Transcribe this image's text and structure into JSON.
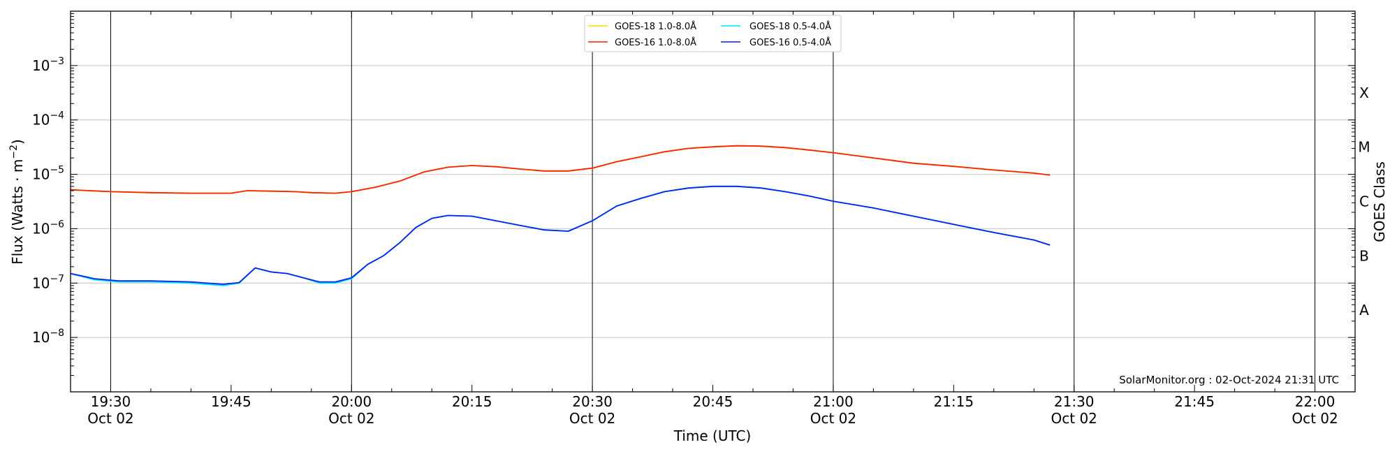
{
  "chart_data": {
    "type": "line",
    "xlabel": "Time (UTC)",
    "ylabel_main": "Flux (Watts · m",
    "ylabel_sup": "−2",
    "ylabel_close": ")",
    "right_label": "GOES Class",
    "y_scale": "log",
    "ylim": [
      1e-09,
      0.01
    ],
    "xlim": [
      "19:25",
      "22:05"
    ],
    "grid": "horizontal at decades",
    "legend_position": "top-center",
    "credit": "SolarMonitor.org : 02-Oct-2024 21:31 UTC",
    "y_ticks": [
      {
        "exp": "−3",
        "value": 0.001
      },
      {
        "exp": "−4",
        "value": 0.0001
      },
      {
        "exp": "−5",
        "value": 1e-05
      },
      {
        "exp": "−6",
        "value": 1e-06
      },
      {
        "exp": "−7",
        "value": 1e-07
      },
      {
        "exp": "−8",
        "value": 1e-08
      }
    ],
    "x_ticks": [
      {
        "time": "19:30",
        "label": "19:30",
        "sub": "Oct 02",
        "major": true
      },
      {
        "time": "19:45",
        "label": "19:45",
        "sub": "",
        "major": false
      },
      {
        "time": "20:00",
        "label": "20:00",
        "sub": "Oct 02",
        "major": true
      },
      {
        "time": "20:15",
        "label": "20:15",
        "sub": "",
        "major": false
      },
      {
        "time": "20:30",
        "label": "20:30",
        "sub": "Oct 02",
        "major": true
      },
      {
        "time": "20:45",
        "label": "20:45",
        "sub": "",
        "major": false
      },
      {
        "time": "21:00",
        "label": "21:00",
        "sub": "Oct 02",
        "major": true
      },
      {
        "time": "21:15",
        "label": "21:15",
        "sub": "",
        "major": false
      },
      {
        "time": "21:30",
        "label": "21:30",
        "sub": "Oct 02",
        "major": true
      },
      {
        "time": "21:45",
        "label": "21:45",
        "sub": "",
        "major": false
      },
      {
        "time": "22:00",
        "label": "22:00",
        "sub": "Oct 02",
        "major": true
      }
    ],
    "classes": [
      {
        "label": "X",
        "value": 0.000316
      },
      {
        "label": "M",
        "value": 3.16e-05
      },
      {
        "label": "C",
        "value": 3.16e-06
      },
      {
        "label": "B",
        "value": 3.16e-07
      },
      {
        "label": "A",
        "value": 3.16e-08
      }
    ],
    "legend": [
      {
        "name": "GOES-18 1.0-8.0Å",
        "color": "#ffd700"
      },
      {
        "name": "GOES-18 0.5-4.0Å",
        "color": "#00e5ff"
      },
      {
        "name": "GOES-16 1.0-8.0Å",
        "color": "#ff2000"
      },
      {
        "name": "GOES-16 0.5-4.0Å",
        "color": "#0022ee"
      }
    ],
    "series": [
      {
        "name": "GOES-18 1.0-8.0Å",
        "color": "#ffd700",
        "x": [
          "19:25",
          "19:30",
          "19:35",
          "19:40",
          "19:45",
          "19:47",
          "19:50",
          "19:53",
          "19:55",
          "19:58",
          "20:00",
          "20:03",
          "20:06",
          "20:09",
          "20:12",
          "20:15",
          "20:18",
          "20:21",
          "20:24",
          "20:27",
          "20:30",
          "20:33",
          "20:36",
          "20:39",
          "20:42",
          "20:45",
          "20:48",
          "20:51",
          "20:54",
          "20:57",
          "21:00",
          "21:05",
          "21:10",
          "21:15",
          "21:20",
          "21:25",
          "21:27"
        ],
        "y": [
          5.2e-06,
          4.8e-06,
          4.6e-06,
          4.5e-06,
          4.5e-06,
          5e-06,
          4.9e-06,
          4.8e-06,
          4.6e-06,
          4.5e-06,
          4.8e-06,
          5.8e-06,
          7.5e-06,
          1.1e-05,
          1.35e-05,
          1.45e-05,
          1.38e-05,
          1.25e-05,
          1.15e-05,
          1.15e-05,
          1.3e-05,
          1.7e-05,
          2.1e-05,
          2.6e-05,
          3e-05,
          3.2e-05,
          3.35e-05,
          3.3e-05,
          3.1e-05,
          2.8e-05,
          2.5e-05,
          2e-05,
          1.6e-05,
          1.4e-05,
          1.2e-05,
          1.05e-05,
          9.7e-06
        ]
      },
      {
        "name": "GOES-16 1.0-8.0Å",
        "color": "#ff2000",
        "x": [
          "19:25",
          "19:30",
          "19:35",
          "19:40",
          "19:45",
          "19:47",
          "19:50",
          "19:53",
          "19:55",
          "19:58",
          "20:00",
          "20:03",
          "20:06",
          "20:09",
          "20:12",
          "20:15",
          "20:18",
          "20:21",
          "20:24",
          "20:27",
          "20:30",
          "20:33",
          "20:36",
          "20:39",
          "20:42",
          "20:45",
          "20:48",
          "20:51",
          "20:54",
          "20:57",
          "21:00",
          "21:05",
          "21:10",
          "21:15",
          "21:20",
          "21:25",
          "21:27"
        ],
        "y": [
          5.2e-06,
          4.8e-06,
          4.6e-06,
          4.5e-06,
          4.5e-06,
          5e-06,
          4.9e-06,
          4.8e-06,
          4.6e-06,
          4.5e-06,
          4.8e-06,
          5.8e-06,
          7.5e-06,
          1.1e-05,
          1.35e-05,
          1.45e-05,
          1.38e-05,
          1.25e-05,
          1.15e-05,
          1.15e-05,
          1.3e-05,
          1.7e-05,
          2.1e-05,
          2.6e-05,
          3e-05,
          3.2e-05,
          3.35e-05,
          3.3e-05,
          3.1e-05,
          2.8e-05,
          2.5e-05,
          2e-05,
          1.6e-05,
          1.4e-05,
          1.2e-05,
          1.05e-05,
          9.7e-06
        ]
      },
      {
        "name": "GOES-18 0.5-4.0Å",
        "color": "#00e5ff",
        "x": [
          "19:25",
          "19:28",
          "19:31",
          "19:35",
          "19:40",
          "19:44",
          "19:46",
          "19:48",
          "19:50",
          "19:52",
          "19:54",
          "19:56",
          "19:58",
          "20:00",
          "20:02",
          "20:04",
          "20:06",
          "20:08",
          "20:10",
          "20:12",
          "20:15",
          "20:18",
          "20:21",
          "20:24",
          "20:27",
          "20:30",
          "20:33",
          "20:36",
          "20:39",
          "20:42",
          "20:45",
          "20:48",
          "20:51",
          "20:54",
          "20:57",
          "21:00",
          "21:05",
          "21:10",
          "21:15",
          "21:20",
          "21:25",
          "21:27"
        ],
        "y": [
          1.5e-07,
          1.15e-07,
          1.05e-07,
          1.05e-07,
          1e-07,
          9e-08,
          1e-07,
          1.9e-07,
          1.6e-07,
          1.5e-07,
          1.25e-07,
          1e-07,
          1e-07,
          1.2e-07,
          2.2e-07,
          3.2e-07,
          5.5e-07,
          1.05e-06,
          1.55e-06,
          1.75e-06,
          1.7e-06,
          1.4e-06,
          1.15e-06,
          9.5e-07,
          9e-07,
          1.4e-06,
          2.6e-06,
          3.6e-06,
          4.8e-06,
          5.6e-06,
          6e-06,
          6e-06,
          5.6e-06,
          4.8e-06,
          4e-06,
          3.2e-06,
          2.4e-06,
          1.7e-06,
          1.2e-06,
          8.5e-07,
          6.2e-07,
          5e-07
        ]
      },
      {
        "name": "GOES-16 0.5-4.0Å",
        "color": "#0022ee",
        "x": [
          "19:25",
          "19:28",
          "19:31",
          "19:35",
          "19:40",
          "19:44",
          "19:46",
          "19:48",
          "19:50",
          "19:52",
          "19:54",
          "19:56",
          "19:58",
          "20:00",
          "20:02",
          "20:04",
          "20:06",
          "20:08",
          "20:10",
          "20:12",
          "20:15",
          "20:18",
          "20:21",
          "20:24",
          "20:27",
          "20:30",
          "20:33",
          "20:36",
          "20:39",
          "20:42",
          "20:45",
          "20:48",
          "20:51",
          "20:54",
          "20:57",
          "21:00",
          "21:05",
          "21:10",
          "21:15",
          "21:20",
          "21:25",
          "21:27"
        ],
        "y": [
          1.5e-07,
          1.2e-07,
          1.1e-07,
          1.1e-07,
          1.05e-07,
          9.5e-08,
          1.02e-07,
          1.9e-07,
          1.6e-07,
          1.5e-07,
          1.25e-07,
          1.05e-07,
          1.05e-07,
          1.25e-07,
          2.2e-07,
          3.2e-07,
          5.5e-07,
          1.05e-06,
          1.55e-06,
          1.75e-06,
          1.7e-06,
          1.4e-06,
          1.15e-06,
          9.5e-07,
          9e-07,
          1.4e-06,
          2.6e-06,
          3.6e-06,
          4.8e-06,
          5.6e-06,
          6e-06,
          6e-06,
          5.6e-06,
          4.8e-06,
          4e-06,
          3.2e-06,
          2.4e-06,
          1.7e-06,
          1.2e-06,
          8.5e-07,
          6.2e-07,
          5e-07
        ]
      }
    ]
  }
}
